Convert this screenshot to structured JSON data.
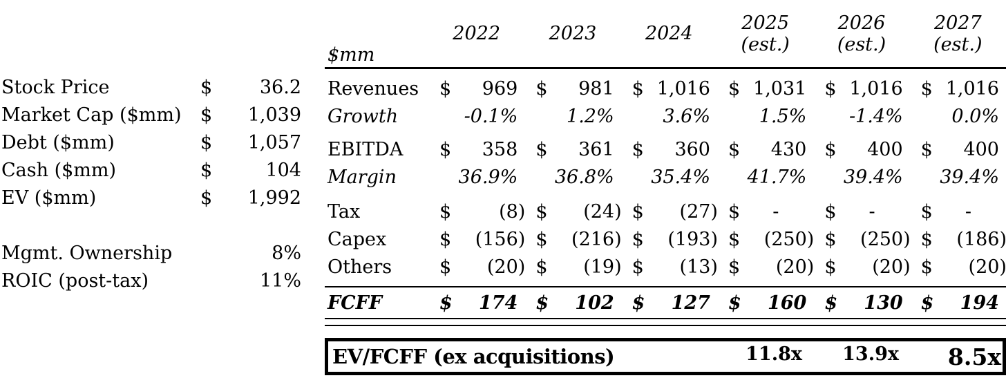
{
  "left_panel": {
    "rows": [
      {
        "label": "Stock Price",
        "currency": "$",
        "value": "36.2"
      },
      {
        "label": "Market Cap ($mm)",
        "currency": "$",
        "value": "1,039"
      },
      {
        "label": "Debt ($mm)",
        "currency": "$",
        "value": "1,057"
      },
      {
        "label": "Cash ($mm)",
        "currency": "$",
        "value": "104"
      },
      {
        "label": "EV ($mm)",
        "currency": "$",
        "value": "1,992"
      },
      {
        "label": "Mgmt. Ownership",
        "currency": "",
        "value": "8%"
      },
      {
        "label": "ROIC (post-tax)",
        "currency": "",
        "value": "11%"
      }
    ]
  },
  "table": {
    "unit_label": "$mm",
    "years": [
      {
        "year": "2022",
        "suffix": ""
      },
      {
        "year": "2023",
        "suffix": ""
      },
      {
        "year": "2024",
        "suffix": ""
      },
      {
        "year": "2025",
        "suffix": "(est.)"
      },
      {
        "year": "2026",
        "suffix": "(est.)"
      },
      {
        "year": "2027",
        "suffix": "(est.)"
      }
    ],
    "rows": {
      "revenues": {
        "label": "Revenues",
        "currency": "$",
        "values": [
          "969",
          "981",
          "1,016",
          "1,031",
          "1,016",
          "1,016"
        ]
      },
      "growth": {
        "label": "Growth",
        "values": [
          "-0.1%",
          "1.2%",
          "3.6%",
          "1.5%",
          "-1.4%",
          "0.0%"
        ]
      },
      "ebitda": {
        "label": "EBITDA",
        "currency": "$",
        "values": [
          "358",
          "361",
          "360",
          "430",
          "400",
          "400"
        ]
      },
      "margin": {
        "label": "Margin",
        "values": [
          "36.9%",
          "36.8%",
          "35.4%",
          "41.7%",
          "39.4%",
          "39.4%"
        ]
      },
      "tax": {
        "label": "Tax",
        "currency": "$",
        "values": [
          "(8)",
          "(24)",
          "(27)",
          "-",
          "-",
          "-"
        ]
      },
      "capex": {
        "label": "Capex",
        "currency": "$",
        "values": [
          "(156)",
          "(216)",
          "(193)",
          "(250)",
          "(250)",
          "(186)"
        ]
      },
      "others": {
        "label": "Others",
        "currency": "$",
        "values": [
          "(20)",
          "(19)",
          "(13)",
          "(20)",
          "(20)",
          "(20)"
        ]
      },
      "fcff": {
        "label": "FCFF",
        "currency": "$",
        "values": [
          "174",
          "102",
          "127",
          "160",
          "130",
          "194"
        ]
      }
    },
    "footer": {
      "label": "EV/FCFF (ex acquisitions)",
      "values": [
        "11.8x",
        "13.9x",
        "8.5x"
      ]
    }
  }
}
